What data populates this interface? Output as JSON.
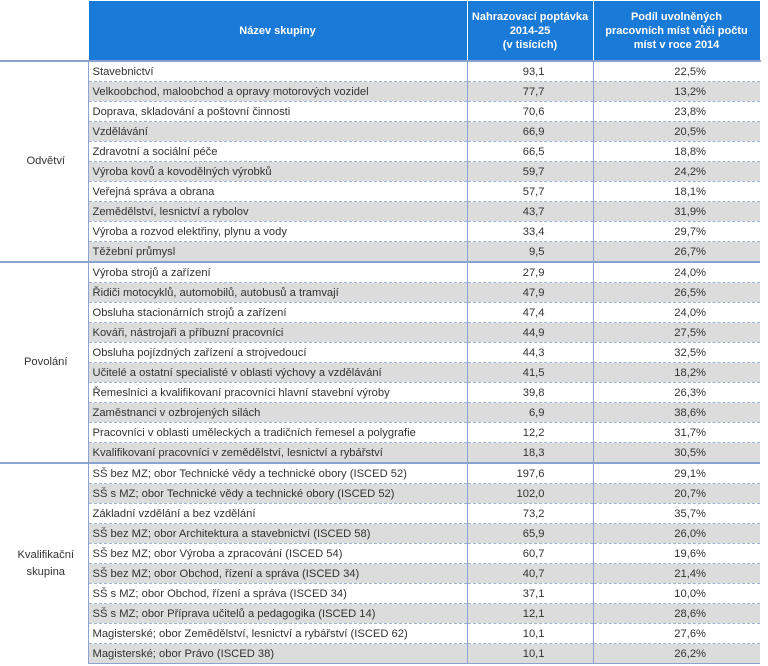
{
  "header": {
    "col1": "",
    "col2": "Název skupiny",
    "col3": [
      "Nahrazovací poptávka",
      "2014-25",
      "(v tisících)"
    ],
    "col4": [
      "Podíl uvolněných",
      "pracovních míst vůči počtu",
      "míst v roce 2014"
    ]
  },
  "groups": [
    {
      "label": "Odvětví",
      "rows": [
        {
          "name": "Stavebnictví",
          "value": "93,1",
          "share": "22,5%"
        },
        {
          "name": "Velkoobchod, maloobchod a opravy motorových vozidel",
          "value": "77,7",
          "share": "13,2%"
        },
        {
          "name": "Doprava, skladování a poštovní činnosti",
          "value": "70,6",
          "share": "23,8%"
        },
        {
          "name": "Vzdělávání",
          "value": "66,9",
          "share": "20,5%"
        },
        {
          "name": "Zdravotní a sociální péče",
          "value": "66,5",
          "share": "18,8%"
        },
        {
          "name": "Výroba kovů a kovodělných výrobků",
          "value": "59,7",
          "share": "24,2%"
        },
        {
          "name": "Veřejná správa a obrana",
          "value": "57,7",
          "share": "18,1%"
        },
        {
          "name": "Zemědělství, lesnictví a rybolov",
          "value": "43,7",
          "share": "31,9%"
        },
        {
          "name": "Výroba a rozvod elektřiny, plynu a vody",
          "value": "33,4",
          "share": "29,7%"
        },
        {
          "name": "Těžební průmysl",
          "value": "9,5",
          "share": "26,7%"
        }
      ]
    },
    {
      "label": "Povolání",
      "rows": [
        {
          "name": "Výroba strojů a zařízení",
          "value": "27,9",
          "share": "24,0%"
        },
        {
          "name": "Řidiči motocyklů, automobilů, autobusů a tramvají",
          "value": "47,9",
          "share": "26,5%"
        },
        {
          "name": "Obsluha stacionárních strojů a zařízení",
          "value": "47,4",
          "share": "24,0%"
        },
        {
          "name": "Kováři, nástrojaři a příbuzní pracovníci",
          "value": "44,9",
          "share": "27,5%"
        },
        {
          "name": "Obsluha pojízdných zařízení a strojvedoucí",
          "value": "44,3",
          "share": "32,5%"
        },
        {
          "name": "Učitelé a ostatní specialisté v oblasti výchovy a vzdělávání",
          "value": "41,5",
          "share": "18,2%"
        },
        {
          "name": "Řemeslníci a kvalifikovaní pracovníci hlavní stavební výroby",
          "value": "39,8",
          "share": "26,3%"
        },
        {
          "name": "Zaměstnanci v ozbrojených silách",
          "value": "6,9",
          "share": "38,6%"
        },
        {
          "name": "Pracovníci v oblasti uměleckých a tradičních řemesel a polygrafie",
          "value": "12,2",
          "share": "31,7%"
        },
        {
          "name": "Kvalifikovaní pracovníci v zemědělství, lesnictví a rybářství",
          "value": "18,3",
          "share": "30,5%"
        }
      ]
    },
    {
      "label": "Kvalifikační skupina",
      "rows": [
        {
          "name": "SŠ bez MZ; obor Technické vědy a technické obory (ISCED 52)",
          "value": "197,6",
          "share": "29,1%"
        },
        {
          "name": "SŠ s MZ; obor Technické vědy a technické obory (ISCED 52)",
          "value": "102,0",
          "share": "20,7%"
        },
        {
          "name": "Základní vzdělání a bez vzdělání",
          "value": "73,2",
          "share": "35,7%"
        },
        {
          "name": "SŠ bez MZ; obor Architektura a stavebnictví (ISCED 58)",
          "value": "65,9",
          "share": "26,0%"
        },
        {
          "name": "SŠ bez MZ; obor Výroba a zpracování (ISCED 54)",
          "value": "60,7",
          "share": "19,6%"
        },
        {
          "name": "SŠ bez MZ; obor Obchod, řízení a správa (ISCED 34)",
          "value": "40,7",
          "share": "21,4%"
        },
        {
          "name": "SŠ s MZ; obor Obchod, řízení a správa (ISCED 34)",
          "value": "37,1",
          "share": "10,0%"
        },
        {
          "name": "SŠ s MZ; obor Příprava učitelů a pedagogika (ISCED 14)",
          "value": "12,1",
          "share": "28,6%"
        },
        {
          "name": "Magisterské; obor Zemědělství, lesnictví a rybářství (ISCED 62)",
          "value": "10,1",
          "share": "27,6%"
        },
        {
          "name": "Magisterské; obor Právo (ISCED 38)",
          "value": "10,1",
          "share": "26,2%"
        }
      ]
    }
  ]
}
